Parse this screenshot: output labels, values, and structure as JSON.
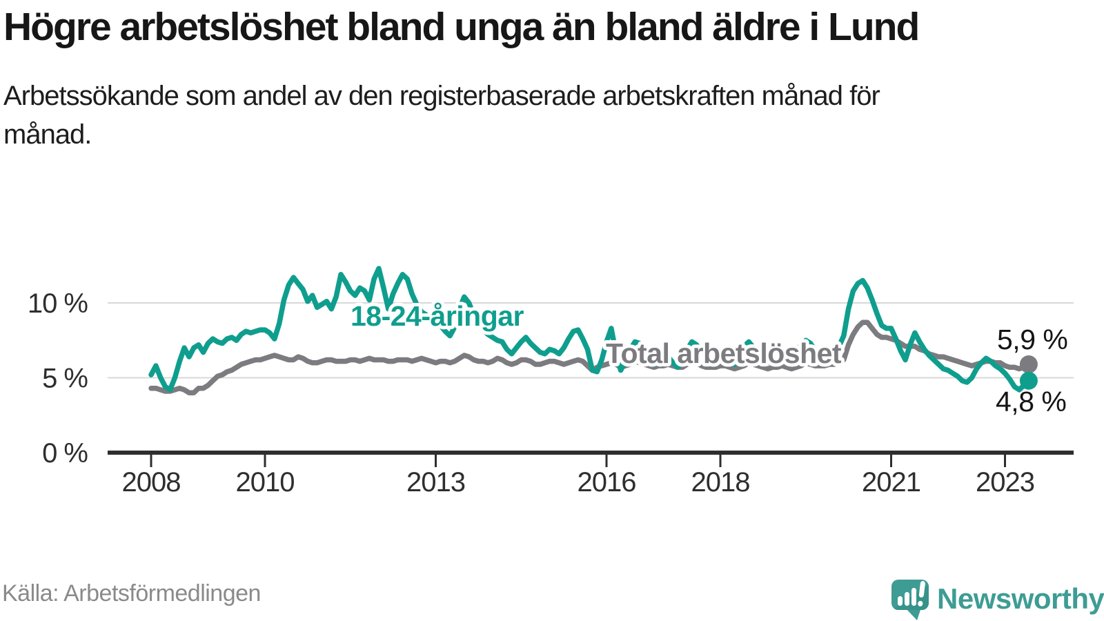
{
  "header": {
    "title": "Högre arbetslöshet bland unga än bland äldre i Lund",
    "subtitle": "Arbetssökande som andel av den registerbaserade arbetskraften månad för månad."
  },
  "chart_data": {
    "type": "line",
    "unit": "%",
    "grid": "horizontal",
    "ylim": [
      0,
      12.6
    ],
    "x_range": {
      "start_year": 2008,
      "start_month": 1,
      "end_year": 2023,
      "end_month": 6,
      "frequency": "monthly"
    },
    "y_axis": {
      "ticks": [
        {
          "value": 0,
          "label": "0 %"
        },
        {
          "value": 5,
          "label": "5 %"
        },
        {
          "value": 10,
          "label": "10 %"
        }
      ]
    },
    "x_axis": {
      "ticks": [
        {
          "year": 2008,
          "label": "2008"
        },
        {
          "year": 2010,
          "label": "2010"
        },
        {
          "year": 2013,
          "label": "2013"
        },
        {
          "year": 2016,
          "label": "2016"
        },
        {
          "year": 2018,
          "label": "2018"
        },
        {
          "year": 2021,
          "label": "2021"
        },
        {
          "year": 2023,
          "label": "2023"
        }
      ]
    },
    "series": [
      {
        "id": "total",
        "name": "Total arbetslöshet",
        "color": "#7c7c80",
        "end_label": "5,9 %",
        "end_value": 5.9,
        "values": [
          4.3,
          4.3,
          4.2,
          4.1,
          4.1,
          4.2,
          4.3,
          4.2,
          4.0,
          4.0,
          4.3,
          4.3,
          4.5,
          4.8,
          5.1,
          5.2,
          5.4,
          5.5,
          5.7,
          5.9,
          6.0,
          6.1,
          6.2,
          6.2,
          6.3,
          6.4,
          6.5,
          6.4,
          6.3,
          6.2,
          6.2,
          6.4,
          6.3,
          6.1,
          6.0,
          6.0,
          6.1,
          6.2,
          6.2,
          6.1,
          6.1,
          6.1,
          6.2,
          6.2,
          6.1,
          6.2,
          6.3,
          6.2,
          6.2,
          6.2,
          6.1,
          6.1,
          6.2,
          6.2,
          6.2,
          6.1,
          6.2,
          6.3,
          6.2,
          6.1,
          6.0,
          6.1,
          6.1,
          6.0,
          6.1,
          6.3,
          6.5,
          6.4,
          6.2,
          6.1,
          6.1,
          6.0,
          6.1,
          6.3,
          6.2,
          6.0,
          5.9,
          6.0,
          6.2,
          6.2,
          6.1,
          5.9,
          5.9,
          6.0,
          6.1,
          6.1,
          6.0,
          5.9,
          6.0,
          6.1,
          6.2,
          6.1,
          5.8,
          5.5,
          5.7,
          5.8,
          5.9,
          6.0,
          5.9,
          5.7,
          5.8,
          5.9,
          6.1,
          6.0,
          5.9,
          5.8,
          5.7,
          5.8,
          5.8,
          5.9,
          5.8,
          5.7,
          5.7,
          5.9,
          6.0,
          6.0,
          5.8,
          5.7,
          5.7,
          5.7,
          5.8,
          5.8,
          5.7,
          5.6,
          5.7,
          5.8,
          6.0,
          5.9,
          5.8,
          5.7,
          5.6,
          5.7,
          5.7,
          5.8,
          5.7,
          5.6,
          5.7,
          5.8,
          6.0,
          5.9,
          5.8,
          5.8,
          5.8,
          5.9,
          5.9,
          6.0,
          6.2,
          7.2,
          7.9,
          8.4,
          8.7,
          8.7,
          8.3,
          7.9,
          7.7,
          7.7,
          7.6,
          7.5,
          7.3,
          7.1,
          7.1,
          7.1,
          6.9,
          6.8,
          6.6,
          6.5,
          6.4,
          6.4,
          6.3,
          6.2,
          6.1,
          6.0,
          5.9,
          5.8,
          5.9,
          6.0,
          6.1,
          6.1,
          6.0,
          6.0,
          5.8,
          5.7,
          5.7,
          5.6,
          5.7,
          5.9
        ]
      },
      {
        "id": "youth",
        "name": "18-24-åringar",
        "color": "#0f9e8e",
        "end_label": "4,8 %",
        "end_value": 4.8,
        "values": [
          5.2,
          5.8,
          5.0,
          4.4,
          4.2,
          5.0,
          6.1,
          7.0,
          6.4,
          7.0,
          7.2,
          6.7,
          7.3,
          7.6,
          7.4,
          7.3,
          7.6,
          7.7,
          7.5,
          7.9,
          8.1,
          8.0,
          8.1,
          8.2,
          8.2,
          8.0,
          7.6,
          8.6,
          10.2,
          11.2,
          11.7,
          11.3,
          10.9,
          10.1,
          10.5,
          9.7,
          9.9,
          10.1,
          9.6,
          10.4,
          11.9,
          11.4,
          10.8,
          10.5,
          11.0,
          10.8,
          10.2,
          11.6,
          12.3,
          11.0,
          9.6,
          10.6,
          11.3,
          11.9,
          11.6,
          10.6,
          9.9,
          9.4,
          9.2,
          9.0,
          8.8,
          8.5,
          8.1,
          7.8,
          8.4,
          9.6,
          10.4,
          10.0,
          9.2,
          8.6,
          8.2,
          7.9,
          7.7,
          7.5,
          7.4,
          6.9,
          6.6,
          7.0,
          7.4,
          7.7,
          7.3,
          7.0,
          6.7,
          6.6,
          6.9,
          6.8,
          6.6,
          7.0,
          7.6,
          8.1,
          8.2,
          7.6,
          6.9,
          5.5,
          5.4,
          6.2,
          7.4,
          8.3,
          6.6,
          5.5,
          6.1,
          6.9,
          7.4,
          7.3,
          6.6,
          6.1,
          5.9,
          6.0,
          6.2,
          6.4,
          6.0,
          5.7,
          6.1,
          6.9,
          7.4,
          7.2,
          6.5,
          6.1,
          5.9,
          6.1,
          6.2,
          6.3,
          6.0,
          5.9,
          6.4,
          7.1,
          7.4,
          7.0,
          6.4,
          6.1,
          6.0,
          6.2,
          6.3,
          6.5,
          6.2,
          6.1,
          6.6,
          7.2,
          7.5,
          7.3,
          6.8,
          6.6,
          6.6,
          6.8,
          7.0,
          7.1,
          7.8,
          9.6,
          10.8,
          11.3,
          11.5,
          11.0,
          10.2,
          9.3,
          8.5,
          8.3,
          8.3,
          7.6,
          6.8,
          6.2,
          7.2,
          8.0,
          7.4,
          6.9,
          6.5,
          6.2,
          5.9,
          5.6,
          5.5,
          5.3,
          5.1,
          4.8,
          4.7,
          5.0,
          5.6,
          6.0,
          6.3,
          6.1,
          5.8,
          5.6,
          5.3,
          4.9,
          4.4,
          4.2,
          4.5,
          4.8
        ]
      }
    ]
  },
  "footer": {
    "source": "Källa: Arbetsförmedlingen",
    "brand": "Newsworthy"
  }
}
